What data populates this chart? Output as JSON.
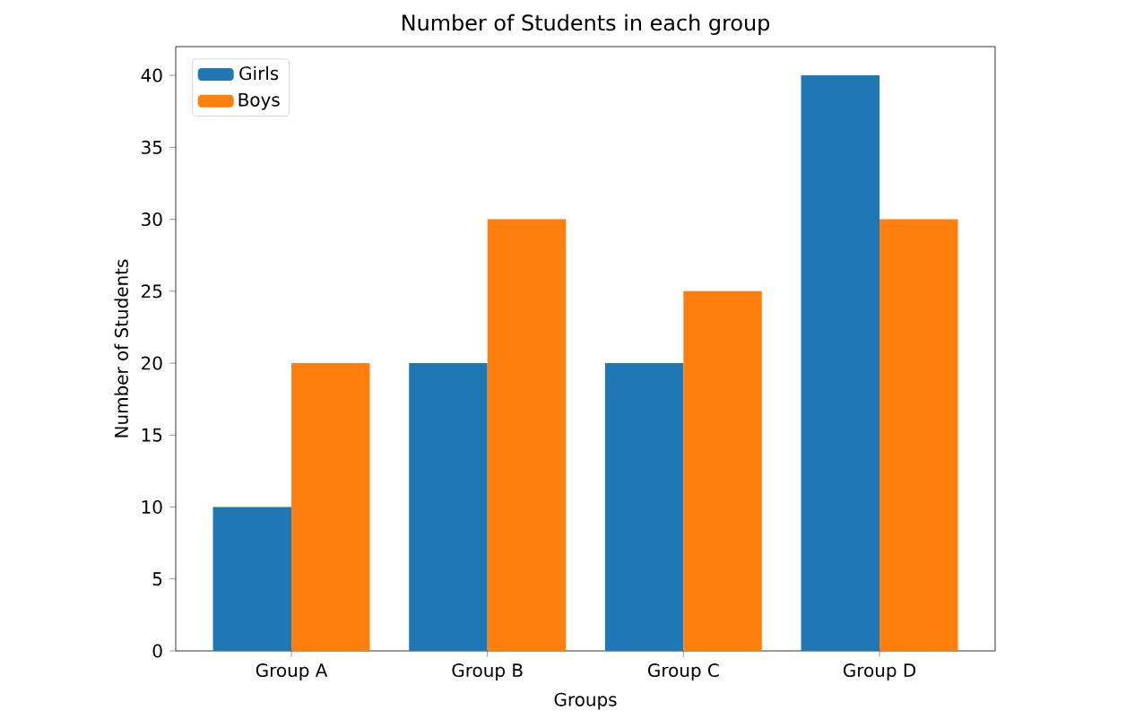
{
  "chart_data": {
    "type": "bar",
    "title": "Number of Students in each group",
    "xlabel": "Groups",
    "ylabel": "Number of Students",
    "categories": [
      "Group A",
      "Group B",
      "Group C",
      "Group D"
    ],
    "series": [
      {
        "name": "Girls",
        "color": "#1f77b4",
        "values": [
          10,
          20,
          20,
          40
        ]
      },
      {
        "name": "Boys",
        "color": "#ff7f0e",
        "values": [
          20,
          30,
          25,
          30
        ]
      }
    ],
    "ylim": [
      0,
      42
    ],
    "yticks": [
      0,
      5,
      10,
      15,
      20,
      25,
      30,
      35,
      40
    ],
    "legend": "top left"
  }
}
